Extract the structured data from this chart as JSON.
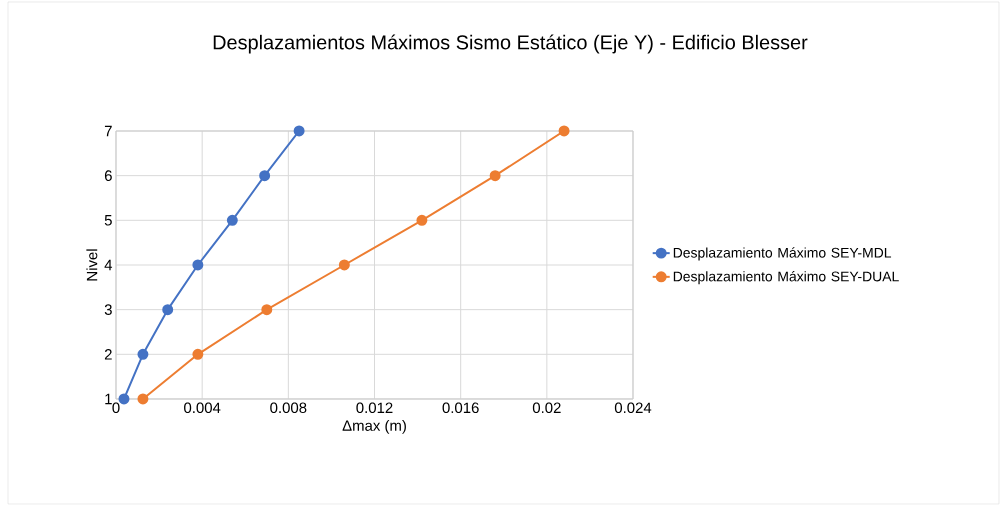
{
  "chart_data": {
    "type": "line",
    "title": "Desplazamientos Máximos Sismo Estático (Eje Y) - Edificio Blesser",
    "xlabel": "Δmax (m)",
    "ylabel": "Nivel",
    "series": [
      {
        "name": "Desplazamiento Máximo SEY-MDL",
        "color": "#4472c4",
        "x": [
          0.00037,
          0.00125,
          0.0024,
          0.0038,
          0.0054,
          0.0069,
          0.0085
        ],
        "values": [
          1,
          2,
          3,
          4,
          5,
          6,
          7
        ]
      },
      {
        "name": "Desplazamiento Máximo SEY-DUAL",
        "color": "#ed7d31",
        "x": [
          0.00125,
          0.0038,
          0.007,
          0.0106,
          0.0142,
          0.0176,
          0.0208
        ],
        "values": [
          1,
          2,
          3,
          4,
          5,
          6,
          7
        ]
      }
    ],
    "xlim": [
      0,
      0.024
    ],
    "ylim": [
      1,
      7
    ],
    "xticks": [
      0,
      0.004,
      0.008,
      0.012,
      0.016,
      0.02,
      0.024
    ],
    "yticks": [
      1,
      2,
      3,
      4,
      5,
      6,
      7
    ],
    "grid": true,
    "legend": "right",
    "marker": "circle",
    "line_style": "solid"
  }
}
